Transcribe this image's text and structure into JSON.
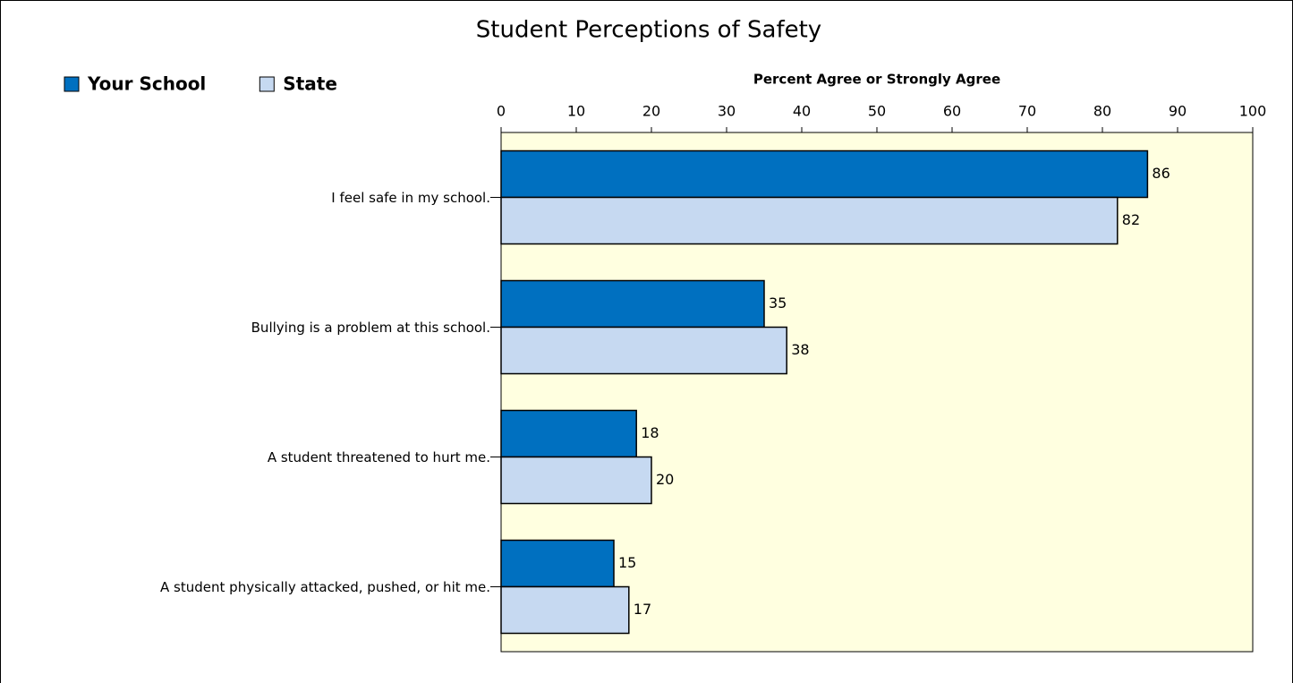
{
  "chart_data": {
    "type": "bar",
    "orientation": "horizontal",
    "title": "Student Perceptions of Safety",
    "xlabel": "Percent Agree or Strongly Agree",
    "categories": [
      "I feel safe in my school.",
      "Bullying is a problem at this school.",
      "A student threatened to hurt me.",
      "A student physically attacked, pushed, or hit me."
    ],
    "series": [
      {
        "name": "Your School",
        "color": "#0070c0",
        "values": [
          86,
          35,
          18,
          15
        ]
      },
      {
        "name": "State",
        "color": "#c6d9f1",
        "values": [
          82,
          38,
          20,
          17
        ]
      }
    ],
    "xlim": [
      0,
      100
    ],
    "xticks": [
      0,
      10,
      20,
      30,
      40,
      50,
      60,
      70,
      80,
      90,
      100
    ],
    "plot_background": "#ffffe0",
    "legend": "top-left"
  }
}
